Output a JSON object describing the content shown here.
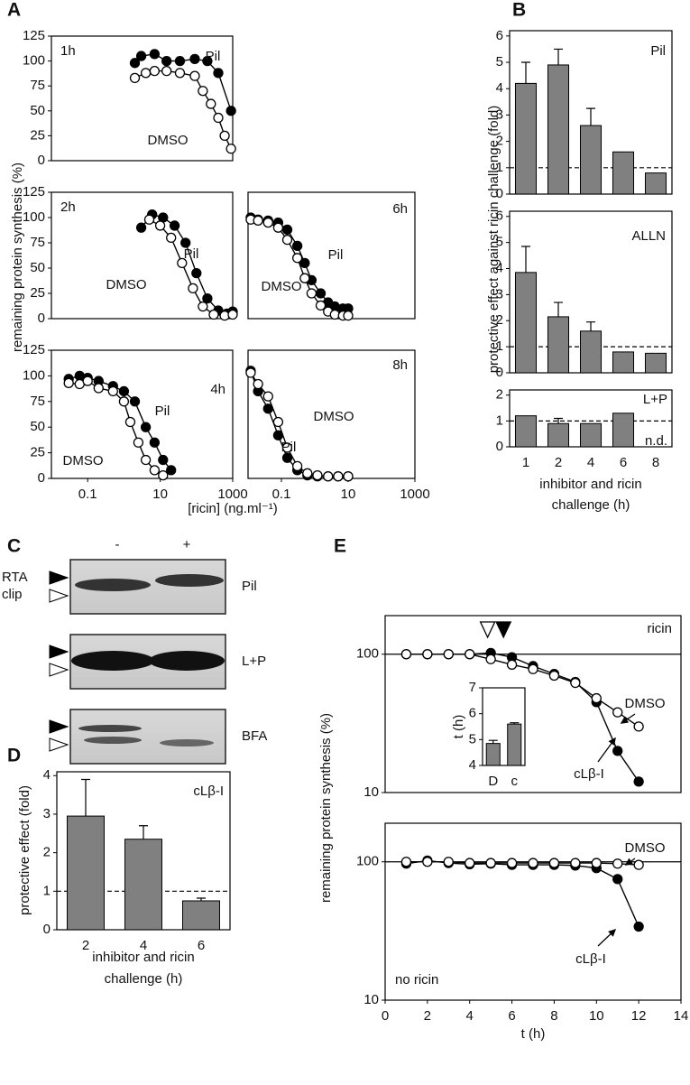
{
  "panels": [
    {
      "letter": "A",
      "ylabel": "remaining protein synthesis (%)",
      "xlabel": "[ricin] (ng.ml⁻¹)"
    },
    {
      "letter": "B",
      "ylabel": "protective effect against ricin challenge (fold)",
      "xlabel": [
        "inhibitor and ricin",
        "challenge (h)"
      ]
    },
    {
      "letter": "C",
      "lanes": [
        "-",
        "+"
      ],
      "markers": [
        "RTA",
        "clip"
      ],
      "blots": [
        "Pil",
        "L+P",
        "BFA"
      ]
    },
    {
      "letter": "D"
    },
    {
      "letter": "E",
      "ylabel": "remaining protein synthesis (%)",
      "xlabel": "t (h)"
    }
  ],
  "chart_data": [
    {
      "type": "scatter",
      "label": "1h",
      "xscale": "log",
      "xlim": [
        0.01,
        1000
      ],
      "ylim": [
        0,
        125
      ],
      "yticks": [
        0,
        25,
        50,
        75,
        100,
        125
      ],
      "series": [
        {
          "name": "Pil",
          "color": "#000000",
          "x": [
            2,
            3,
            7,
            15,
            35,
            90,
            200,
            400,
            900
          ],
          "values": [
            98,
            105,
            107,
            100,
            100,
            102,
            100,
            88,
            50
          ]
        },
        {
          "name": "DMSO",
          "color": "#ffffff",
          "x": [
            2,
            4,
            7,
            15,
            35,
            90,
            150,
            250,
            400,
            600,
            900
          ],
          "values": [
            83,
            88,
            90,
            90,
            88,
            85,
            70,
            57,
            43,
            25,
            12
          ]
        }
      ]
    },
    {
      "type": "scatter",
      "label": "2h",
      "xscale": "log",
      "xlim": [
        0.01,
        1000
      ],
      "ylim": [
        0,
        125
      ],
      "yticks": [
        0,
        25,
        50,
        75,
        100,
        125
      ],
      "series": [
        {
          "name": "Pil",
          "color": "#000000",
          "x": [
            3,
            6,
            12,
            25,
            50,
            100,
            200,
            400,
            700,
            1000
          ],
          "values": [
            90,
            103,
            100,
            92,
            75,
            45,
            20,
            8,
            5,
            7
          ]
        },
        {
          "name": "DMSO",
          "color": "#ffffff",
          "x": [
            5,
            10,
            20,
            40,
            80,
            150,
            300,
            600,
            1000
          ],
          "values": [
            98,
            92,
            80,
            55,
            30,
            12,
            4,
            3,
            4
          ]
        }
      ]
    },
    {
      "type": "scatter",
      "label": "6h",
      "xscale": "log",
      "xlim": [
        0.01,
        1000
      ],
      "ylim": [
        0,
        125
      ],
      "series": [
        {
          "name": "Pil",
          "color": "#000000",
          "x": [
            0.012,
            0.02,
            0.04,
            0.08,
            0.15,
            0.3,
            0.5,
            0.8,
            1.5,
            2.5,
            4,
            7,
            10
          ],
          "values": [
            100,
            98,
            97,
            95,
            88,
            72,
            55,
            38,
            25,
            16,
            12,
            10,
            10
          ]
        },
        {
          "name": "DMSO",
          "color": "#ffffff",
          "x": [
            0.012,
            0.02,
            0.04,
            0.08,
            0.15,
            0.3,
            0.5,
            0.8,
            1.5,
            2.5,
            4,
            7,
            10
          ],
          "values": [
            98,
            97,
            95,
            90,
            78,
            60,
            40,
            25,
            13,
            7,
            4,
            3,
            3
          ]
        }
      ]
    },
    {
      "type": "scatter",
      "label": "4h",
      "xscale": "log",
      "xlim": [
        0.01,
        1000
      ],
      "ylim": [
        0,
        125
      ],
      "yticks": [
        0,
        25,
        50,
        75,
        100,
        125
      ],
      "xticks": [
        0.1,
        10,
        1000
      ],
      "series": [
        {
          "name": "Pil",
          "color": "#000000",
          "x": [
            0.03,
            0.06,
            0.1,
            0.2,
            0.5,
            1,
            2,
            4,
            7,
            12,
            20
          ],
          "values": [
            97,
            100,
            98,
            95,
            90,
            85,
            75,
            50,
            35,
            18,
            8
          ]
        },
        {
          "name": "DMSO",
          "color": "#ffffff",
          "x": [
            0.03,
            0.06,
            0.1,
            0.2,
            0.5,
            1,
            1.5,
            2.5,
            4,
            7,
            12
          ],
          "values": [
            93,
            92,
            95,
            88,
            85,
            75,
            55,
            35,
            18,
            8,
            3
          ]
        }
      ]
    },
    {
      "type": "scatter",
      "label": "8h",
      "xscale": "log",
      "xlim": [
        0.01,
        1000
      ],
      "ylim": [
        0,
        125
      ],
      "xticks": [
        0.1,
        10,
        1000
      ],
      "series": [
        {
          "name": "Pil",
          "color": "#000000",
          "x": [
            0.012,
            0.02,
            0.04,
            0.08,
            0.15,
            0.3,
            0.6,
            1.2,
            2.5,
            5,
            10
          ],
          "values": [
            105,
            85,
            68,
            42,
            20,
            8,
            3,
            2,
            2,
            2,
            2
          ]
        },
        {
          "name": "DMSO",
          "color": "#ffffff",
          "x": [
            0.012,
            0.02,
            0.04,
            0.08,
            0.15,
            0.3,
            0.6,
            1.2,
            2.5,
            5,
            10
          ],
          "values": [
            103,
            92,
            80,
            55,
            30,
            12,
            5,
            3,
            2,
            2,
            2
          ]
        }
      ]
    },
    {
      "type": "bar",
      "label": "Pil",
      "color": "#808080",
      "ylim": [
        0,
        6.2
      ],
      "yticks": [
        0,
        1,
        2,
        3,
        4,
        5,
        6
      ],
      "refline": 1,
      "values": [
        4.2,
        4.9,
        2.6,
        1.6,
        0.8
      ],
      "errors": [
        0.8,
        0.6,
        0.65,
        null,
        null
      ]
    },
    {
      "type": "bar",
      "label": "ALLN",
      "color": "#808080",
      "ylim": [
        0,
        6.2
      ],
      "yticks": [
        0,
        1,
        2,
        3,
        4,
        5,
        6
      ],
      "refline": 1,
      "values": [
        3.85,
        2.15,
        1.6,
        0.8,
        0.75
      ],
      "errors": [
        1.0,
        0.55,
        0.35,
        null,
        null
      ]
    },
    {
      "type": "bar",
      "label": "L+P",
      "note": "n.d.",
      "color": "#808080",
      "ylim": [
        0,
        2.2
      ],
      "yticks": [
        0,
        1,
        2
      ],
      "refline": 1,
      "categories": [
        "1",
        "2",
        "4",
        "6",
        "8"
      ],
      "values": [
        1.2,
        0.9,
        0.9,
        1.3,
        null
      ],
      "errors": [
        null,
        0.2,
        null,
        null,
        null
      ]
    },
    {
      "type": "bar",
      "label": "cLβ-I",
      "color": "#808080",
      "ylim": [
        0,
        4.1
      ],
      "yticks": [
        0,
        1,
        2,
        3,
        4
      ],
      "refline": 1,
      "ylabel": "protective effect (fold)",
      "xlabel": [
        "inhibitor and ricin",
        "challenge (h)"
      ],
      "categories": [
        "2",
        "4",
        "6"
      ],
      "values": [
        2.95,
        2.35,
        0.75
      ],
      "errors": [
        0.95,
        0.35,
        0.07
      ]
    },
    {
      "type": "line",
      "label": "ricin",
      "yscale": "log",
      "xlim": [
        0,
        14
      ],
      "ylim": [
        10,
        190
      ],
      "yticks": [
        10,
        100
      ],
      "refline": 100,
      "x": [
        1,
        2,
        3,
        4,
        5,
        6,
        7,
        8,
        9,
        10,
        11,
        12
      ],
      "series": [
        {
          "name": "cLβ-I",
          "color": "#000000",
          "values": [
            100,
            100,
            100,
            100,
            102,
            95,
            82,
            72,
            63,
            45,
            20,
            12
          ]
        },
        {
          "name": "DMSO",
          "color": "#ffffff",
          "values": [
            100,
            100,
            100,
            100,
            92,
            84,
            78,
            70,
            62,
            48,
            38,
            30
          ]
        }
      ]
    },
    {
      "type": "line",
      "label": "no ricin",
      "yscale": "log",
      "xlim": [
        0,
        14
      ],
      "ylim": [
        10,
        190
      ],
      "yticks": [
        10,
        100
      ],
      "xticks": [
        0,
        2,
        4,
        6,
        8,
        10,
        12,
        14
      ],
      "refline": 100,
      "x": [
        1,
        2,
        3,
        4,
        5,
        6,
        7,
        8,
        9,
        10,
        11,
        12
      ],
      "series": [
        {
          "name": "cLβ-I",
          "color": "#000000",
          "values": [
            97,
            102,
            98,
            96,
            97,
            95,
            95,
            95,
            94,
            90,
            75,
            34
          ]
        },
        {
          "name": "DMSO",
          "color": "#ffffff",
          "values": [
            100,
            100,
            100,
            98,
            98,
            98,
            98,
            98,
            98,
            98,
            97,
            95
          ]
        }
      ]
    },
    {
      "type": "bar",
      "color": "#808080",
      "ylim": [
        4,
        7
      ],
      "yticks": [
        4,
        5,
        6,
        7
      ],
      "ylabel": "t (h)",
      "categories": [
        "D",
        "c"
      ],
      "values": [
        4.85,
        5.6
      ],
      "errors": [
        0.12,
        0.05
      ]
    }
  ]
}
